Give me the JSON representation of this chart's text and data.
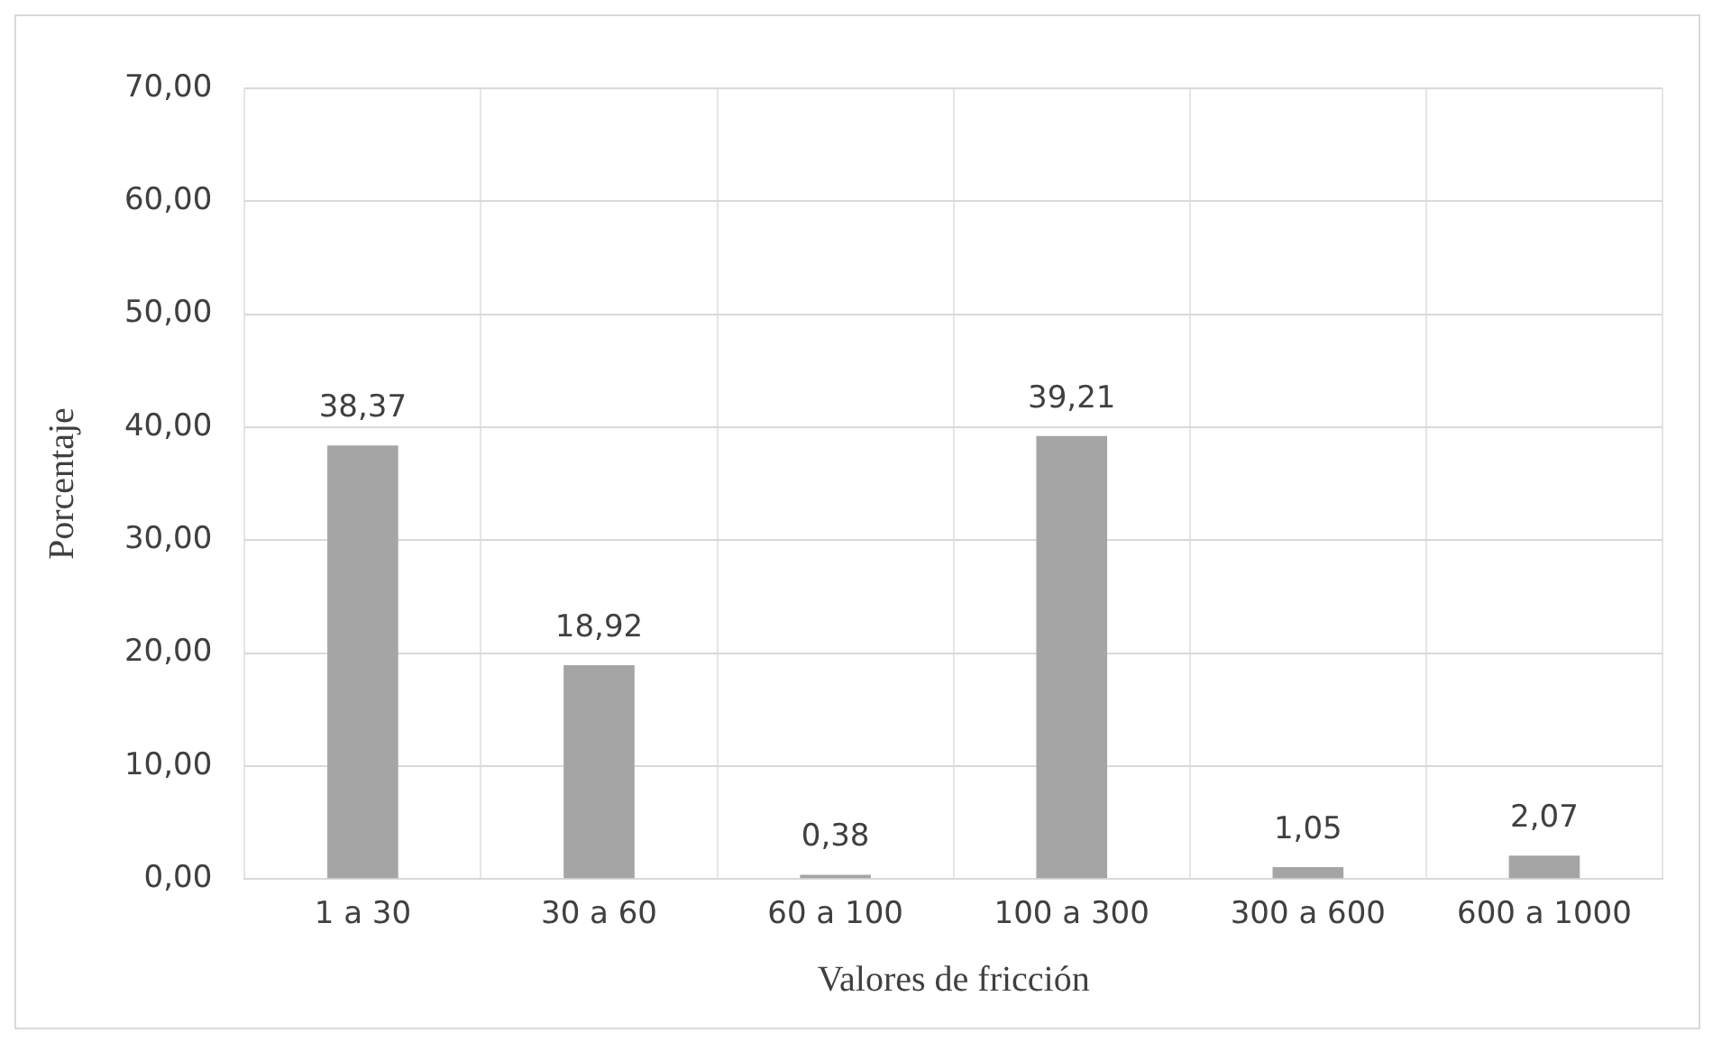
{
  "chart_data": {
    "type": "bar",
    "xlabel": "Valores de fricción",
    "ylabel": "Porcentaje",
    "categories": [
      "1 a 30",
      "30 a 60",
      "60 a 100",
      "100 a 300",
      "300 a 600",
      "600 a 1000"
    ],
    "values": [
      38.37,
      18.92,
      0.38,
      39.21,
      1.05,
      2.07
    ],
    "value_labels": [
      "38,37",
      "18,92",
      "0,38",
      "39,21",
      "1,05",
      "2,07"
    ],
    "color": "#a5a5a5",
    "ylim": [
      0,
      70
    ],
    "yticks": [
      {
        "value": 0,
        "label": "0,00"
      },
      {
        "value": 10,
        "label": "10,00"
      },
      {
        "value": 20,
        "label": "20,00"
      },
      {
        "value": 30,
        "label": "30,00"
      },
      {
        "value": 40,
        "label": "40,00"
      },
      {
        "value": 50,
        "label": "50,00"
      },
      {
        "value": 60,
        "label": "60,00"
      },
      {
        "value": 70,
        "label": "70,00"
      }
    ],
    "grid": true,
    "legend": false
  }
}
